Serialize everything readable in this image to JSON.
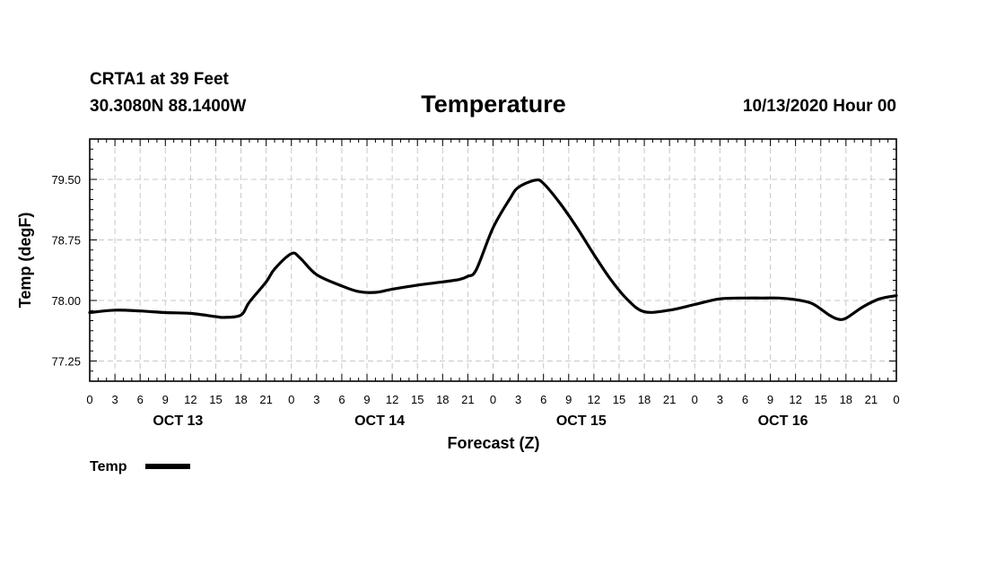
{
  "header": {
    "station": "CRTA1 at 39 Feet",
    "location": "30.3080N 88.1400W",
    "title": "Temperature",
    "run": "10/13/2020 Hour 00"
  },
  "chart_data": {
    "type": "line",
    "title": "Temperature",
    "xlabel": "Forecast (Z)",
    "ylabel": "Temp (degF)",
    "xlim": [
      0,
      96
    ],
    "ylim": [
      77.0,
      80.0
    ],
    "y_ticks": [
      77.25,
      78.0,
      78.75,
      79.5
    ],
    "y_tick_labels": [
      "77.25",
      "78.00",
      "78.75",
      "79.50"
    ],
    "x_tick_labels": [
      "0",
      "3",
      "6",
      "9",
      "12",
      "15",
      "18",
      "21",
      "0",
      "3",
      "6",
      "9",
      "12",
      "15",
      "18",
      "21",
      "0",
      "3",
      "6",
      "9",
      "12",
      "15",
      "18",
      "21",
      "0",
      "3",
      "6",
      "9",
      "12",
      "15",
      "18",
      "21",
      "0"
    ],
    "days": [
      "OCT 13",
      "OCT 14",
      "OCT 15",
      "OCT 16"
    ],
    "grid": true,
    "legend_position": "bottom-left",
    "series": [
      {
        "name": "Temp",
        "color": "#000000",
        "x": [
          0,
          3,
          6,
          9,
          12,
          15,
          16,
          18,
          19,
          21,
          22,
          24,
          25,
          27,
          30,
          32,
          34,
          36,
          39,
          42,
          44,
          45,
          46,
          48,
          50,
          51,
          53,
          54,
          56,
          58,
          60,
          62,
          64,
          66,
          69,
          72,
          75,
          78,
          80,
          82,
          84,
          86,
          88,
          89,
          90,
          92,
          94,
          96
        ],
        "y": [
          77.85,
          77.88,
          77.87,
          77.85,
          77.84,
          77.8,
          77.79,
          77.82,
          77.98,
          78.23,
          78.39,
          78.58,
          78.53,
          78.32,
          78.18,
          78.11,
          78.1,
          78.14,
          78.19,
          78.23,
          78.26,
          78.3,
          78.38,
          78.9,
          79.26,
          79.4,
          79.49,
          79.45,
          79.2,
          78.9,
          78.57,
          78.26,
          78.01,
          77.86,
          77.88,
          77.95,
          78.02,
          78.03,
          78.03,
          78.03,
          78.01,
          77.96,
          77.82,
          77.77,
          77.78,
          77.92,
          78.02,
          78.06
        ]
      }
    ]
  },
  "legend": {
    "label": "Temp"
  }
}
